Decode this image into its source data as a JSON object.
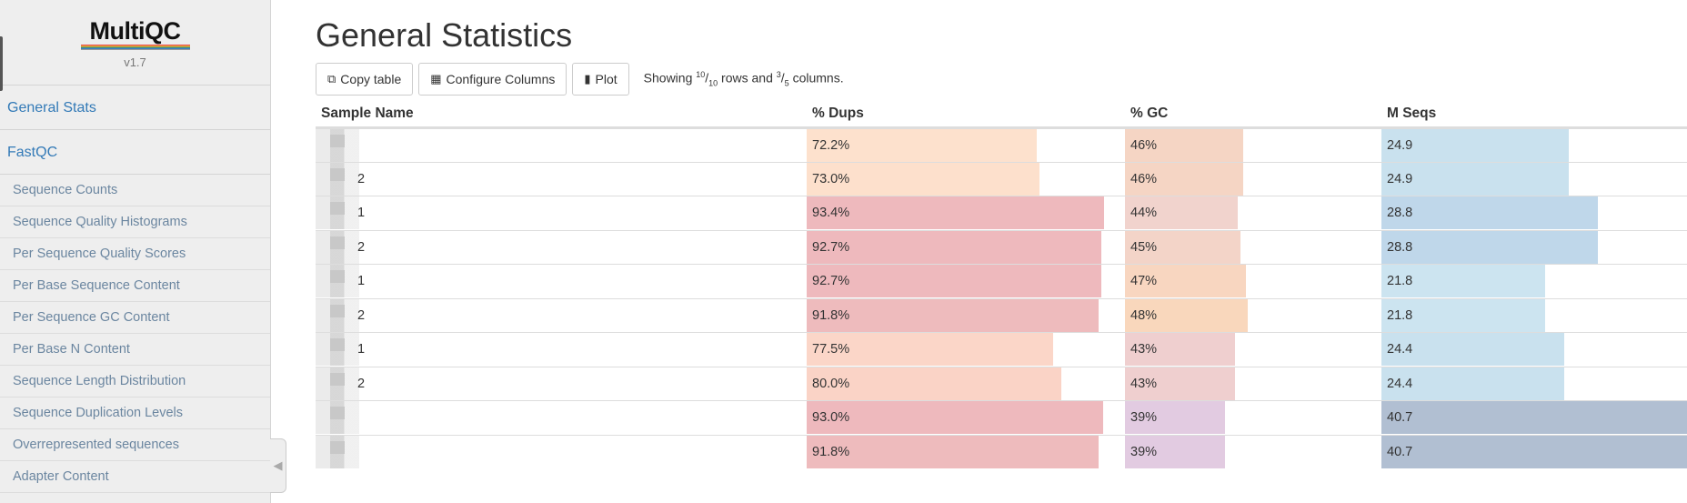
{
  "app": {
    "logo": "MultiQC",
    "version": "v1.7"
  },
  "sidebar": {
    "top_items": [
      {
        "label": "General Stats"
      },
      {
        "label": "FastQC"
      }
    ],
    "sub_items": [
      {
        "label": "Sequence Counts"
      },
      {
        "label": "Sequence Quality Histograms"
      },
      {
        "label": "Per Sequence Quality Scores"
      },
      {
        "label": "Per Base Sequence Content"
      },
      {
        "label": "Per Sequence GC Content"
      },
      {
        "label": "Per Base N Content"
      },
      {
        "label": "Sequence Length Distribution"
      },
      {
        "label": "Sequence Duplication Levels"
      },
      {
        "label": "Overrepresented sequences"
      },
      {
        "label": "Adapter Content"
      }
    ]
  },
  "main": {
    "title": "General Statistics",
    "toolbar": {
      "copy_label": "Copy table",
      "configure_label": "Configure Columns",
      "plot_label": "Plot",
      "showing_prefix": "Showing ",
      "rows_shown": "10",
      "rows_total": "10",
      "rows_word": " rows and ",
      "cols_shown": "3",
      "cols_total": "5",
      "cols_word": " columns."
    },
    "table": {
      "headers": [
        "Sample Name",
        "% Dups",
        "% GC",
        "M Seqs"
      ],
      "rows": [
        {
          "suffix": "",
          "dups": "72.2%",
          "gc": "46%",
          "seqs": "24.9",
          "dups_v": 72.2,
          "gc_v": 46,
          "seqs_v": 24.9
        },
        {
          "suffix": "2",
          "dups": "73.0%",
          "gc": "46%",
          "seqs": "24.9",
          "dups_v": 73.0,
          "gc_v": 46,
          "seqs_v": 24.9
        },
        {
          "suffix": "1",
          "dups": "93.4%",
          "gc": "44%",
          "seqs": "28.8",
          "dups_v": 93.4,
          "gc_v": 44,
          "seqs_v": 28.8
        },
        {
          "suffix": "2",
          "dups": "92.7%",
          "gc": "45%",
          "seqs": "28.8",
          "dups_v": 92.7,
          "gc_v": 45,
          "seqs_v": 28.8
        },
        {
          "suffix": "1",
          "dups": "92.7%",
          "gc": "47%",
          "seqs": "21.8",
          "dups_v": 92.7,
          "gc_v": 47,
          "seqs_v": 21.8
        },
        {
          "suffix": "2",
          "dups": "91.8%",
          "gc": "48%",
          "seqs": "21.8",
          "dups_v": 91.8,
          "gc_v": 48,
          "seqs_v": 21.8
        },
        {
          "suffix": "1",
          "dups": "77.5%",
          "gc": "43%",
          "seqs": "24.4",
          "dups_v": 77.5,
          "gc_v": 43,
          "seqs_v": 24.4
        },
        {
          "suffix": "2",
          "dups": "80.0%",
          "gc": "43%",
          "seqs": "24.4",
          "dups_v": 80.0,
          "gc_v": 43,
          "seqs_v": 24.4
        },
        {
          "suffix": "",
          "dups": "93.0%",
          "gc": "39%",
          "seqs": "40.7",
          "dups_v": 93.0,
          "gc_v": 39,
          "seqs_v": 40.7
        },
        {
          "suffix": "",
          "dups": "91.8%",
          "gc": "39%",
          "seqs": "40.7",
          "dups_v": 91.8,
          "gc_v": 39,
          "seqs_v": 40.7
        }
      ],
      "colors": {
        "dups": [
          "#fde1cd",
          "#fde0cc",
          "#eeb9bd",
          "#eeb9bd",
          "#eeb9bd",
          "#eebbbd",
          "#fbd6c8",
          "#fad3c6",
          "#eeb9bd",
          "#eebbbd"
        ],
        "gc": [
          "#f5d5c4",
          "#f5d5c4",
          "#f1d3cd",
          "#f3d4c8",
          "#f8d6c0",
          "#f9d7bc",
          "#efcfcf",
          "#efcfcf",
          "#e2cbe1",
          "#e2cbe1"
        ],
        "seqs": [
          "#c9e1ee",
          "#c9e1ee",
          "#bfd7ea",
          "#bfd7ea",
          "#cce4f0",
          "#cce4f0",
          "#c9e1ee",
          "#c9e1ee",
          "#b1bfd2",
          "#b1bfd2"
        ]
      },
      "scales": {
        "dups_max": 100,
        "gc_max": 100,
        "seqs_max": 40.7
      }
    }
  }
}
